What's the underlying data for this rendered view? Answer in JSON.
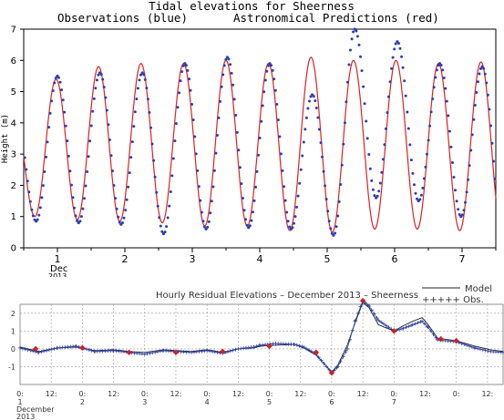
{
  "chart_data": [
    {
      "type": "line",
      "title": "Tidal elevations for Sheerness",
      "subtitle_left": "Observations (blue)",
      "subtitle_right": "Astronomical Predictions (red)",
      "ylabel": "Height (m)",
      "ylim": [
        0,
        7
      ],
      "yticks": [
        "0",
        "1",
        "2",
        "3",
        "4",
        "5",
        "6",
        "7"
      ],
      "xlim_days": [
        0.5,
        7.5
      ],
      "day_labels": [
        "1",
        "2",
        "3",
        "4",
        "5",
        "6",
        "7"
      ],
      "month_label": "Dec",
      "year_label": "2013",
      "grid": false,
      "series": [
        {
          "name": "Observations (blue)",
          "color": "#2b3fb0",
          "marker": "dot",
          "high_water_heights": [
            5.5,
            5.6,
            5.6,
            5.9,
            6.1,
            5.9,
            4.9,
            7.0,
            6.6,
            5.9,
            5.8
          ],
          "low_water_heights": [
            0.85,
            0.8,
            0.75,
            0.45,
            0.6,
            0.65,
            0.6,
            0.4,
            1.6,
            1.5,
            1.0,
            0.25,
            0.5
          ]
        },
        {
          "name": "Astronomical Predictions (red)",
          "color": "#e02020",
          "marker": "line",
          "high_water_heights": [
            5.4,
            5.8,
            5.9,
            5.9,
            6.0,
            5.9,
            6.1,
            6.0,
            6.0,
            5.9,
            5.95
          ],
          "low_water_heights": [
            1.0,
            0.9,
            0.85,
            0.8,
            0.7,
            0.7,
            0.55,
            0.5,
            0.6,
            0.6,
            0.55,
            0.45,
            0.6
          ]
        }
      ]
    },
    {
      "type": "line",
      "title": "Hourly Residual Elevations – December 2013 – Sheerness",
      "ylim": [
        -2,
        2.5
      ],
      "yticks": [
        "-1",
        "0",
        "1",
        "2"
      ],
      "xlim_days": [
        0,
        7.75
      ],
      "x_tick_text": [
        "0:",
        "12:"
      ],
      "day_labels": [
        "1",
        "2",
        "3",
        "4",
        "5",
        "6",
        "7"
      ],
      "month_label": "December",
      "year_label": "2013",
      "legend": {
        "placement": "top-right",
        "model_label": "Model",
        "obs_label": "+++++ Obs."
      },
      "series": [
        {
          "name": "Model",
          "color": "#222222",
          "keypoints": [
            [
              0,
              0.1
            ],
            [
              0.3,
              -0.15
            ],
            [
              0.6,
              0.05
            ],
            [
              0.9,
              0.1
            ],
            [
              1.2,
              -0.1
            ],
            [
              1.5,
              -0.05
            ],
            [
              1.75,
              -0.15
            ],
            [
              2.0,
              -0.2
            ],
            [
              2.3,
              -0.05
            ],
            [
              2.5,
              -0.1
            ],
            [
              2.75,
              -0.15
            ],
            [
              3.0,
              -0.05
            ],
            [
              3.25,
              -0.2
            ],
            [
              3.5,
              0.0
            ],
            [
              3.75,
              0.05
            ],
            [
              3.85,
              0.15
            ],
            [
              4.1,
              0.2
            ],
            [
              4.4,
              0.25
            ],
            [
              4.55,
              0.05
            ],
            [
              4.75,
              -0.35
            ],
            [
              5.0,
              -1.3
            ],
            [
              5.1,
              -0.9
            ],
            [
              5.25,
              0.2
            ],
            [
              5.38,
              1.5
            ],
            [
              5.5,
              2.6
            ],
            [
              5.6,
              2.3
            ],
            [
              5.75,
              1.35
            ],
            [
              6.0,
              1.0
            ],
            [
              6.15,
              1.3
            ],
            [
              6.3,
              1.55
            ],
            [
              6.45,
              1.75
            ],
            [
              6.55,
              1.35
            ],
            [
              6.7,
              0.6
            ],
            [
              7.0,
              0.45
            ],
            [
              7.3,
              0.15
            ],
            [
              7.55,
              -0.05
            ],
            [
              7.75,
              -0.15
            ]
          ]
        },
        {
          "name": "Obs.",
          "color": "#3040a0",
          "marker": "+",
          "keypoints": [
            [
              0,
              0.05
            ],
            [
              0.3,
              -0.2
            ],
            [
              0.6,
              0.05
            ],
            [
              0.9,
              0.15
            ],
            [
              1.2,
              -0.15
            ],
            [
              1.5,
              -0.1
            ],
            [
              1.75,
              -0.2
            ],
            [
              2.0,
              -0.3
            ],
            [
              2.3,
              -0.1
            ],
            [
              2.5,
              -0.15
            ],
            [
              2.75,
              -0.2
            ],
            [
              3.0,
              -0.1
            ],
            [
              3.25,
              -0.25
            ],
            [
              3.5,
              0.0
            ],
            [
              3.75,
              0.1
            ],
            [
              3.85,
              0.2
            ],
            [
              4.1,
              0.3
            ],
            [
              4.4,
              0.25
            ],
            [
              4.55,
              0.1
            ],
            [
              4.75,
              -0.3
            ],
            [
              5.0,
              -1.35
            ],
            [
              5.1,
              -1.0
            ],
            [
              5.25,
              0.0
            ],
            [
              5.38,
              1.6
            ],
            [
              5.5,
              2.7
            ],
            [
              5.6,
              2.4
            ],
            [
              5.75,
              1.6
            ],
            [
              6.0,
              1.0
            ],
            [
              6.15,
              1.15
            ],
            [
              6.3,
              1.35
            ],
            [
              6.45,
              1.55
            ],
            [
              6.55,
              1.2
            ],
            [
              6.7,
              0.5
            ],
            [
              7.0,
              0.4
            ],
            [
              7.3,
              0.05
            ],
            [
              7.55,
              -0.15
            ],
            [
              7.75,
              -0.2
            ]
          ]
        },
        {
          "name": "daily markers",
          "color": "#d02020",
          "marker": "diamond",
          "points": [
            [
              0.25,
              0.0
            ],
            [
              1.0,
              0.05
            ],
            [
              1.75,
              -0.2
            ],
            [
              2.5,
              -0.2
            ],
            [
              3.25,
              -0.15
            ],
            [
              4.0,
              0.15
            ],
            [
              4.75,
              -0.2
            ],
            [
              5.0,
              -1.35
            ],
            [
              5.5,
              2.7
            ],
            [
              6.0,
              1.0
            ],
            [
              6.75,
              0.55
            ],
            [
              7.0,
              0.45
            ]
          ]
        }
      ]
    }
  ]
}
